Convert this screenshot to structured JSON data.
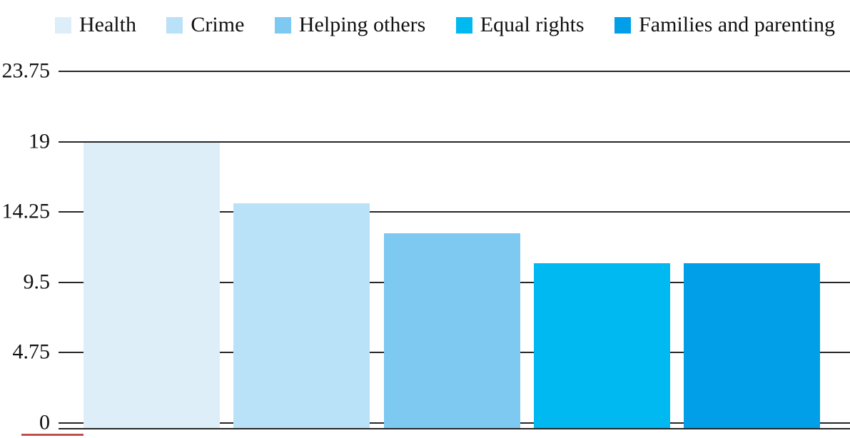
{
  "chart_data": {
    "type": "bar",
    "title": "",
    "xlabel": "",
    "ylabel": "",
    "categories": [
      "Health",
      "Crime",
      "Helping others",
      "Equal rights",
      "Families and parenting"
    ],
    "values": [
      19,
      15,
      13,
      11,
      11
    ],
    "bar_colors": [
      "#ddeef9",
      "#b9e1f7",
      "#7dc9f2",
      "#00b9f0",
      "#009fe8"
    ],
    "ylim": [
      0,
      23.75
    ],
    "ytick_values": [
      0,
      4.75,
      9.5,
      14.25,
      19,
      23.75
    ],
    "ytick_labels": [
      "0",
      "4.75",
      "9.5",
      "14.25",
      "19",
      "23.75"
    ],
    "grid": true,
    "legend_position": "top"
  },
  "colors": {
    "grid_line": "#262626",
    "axis_line": "#262626",
    "text": "#111111",
    "background": "#ffffff",
    "bottom_left_mark": "#c0504d"
  }
}
